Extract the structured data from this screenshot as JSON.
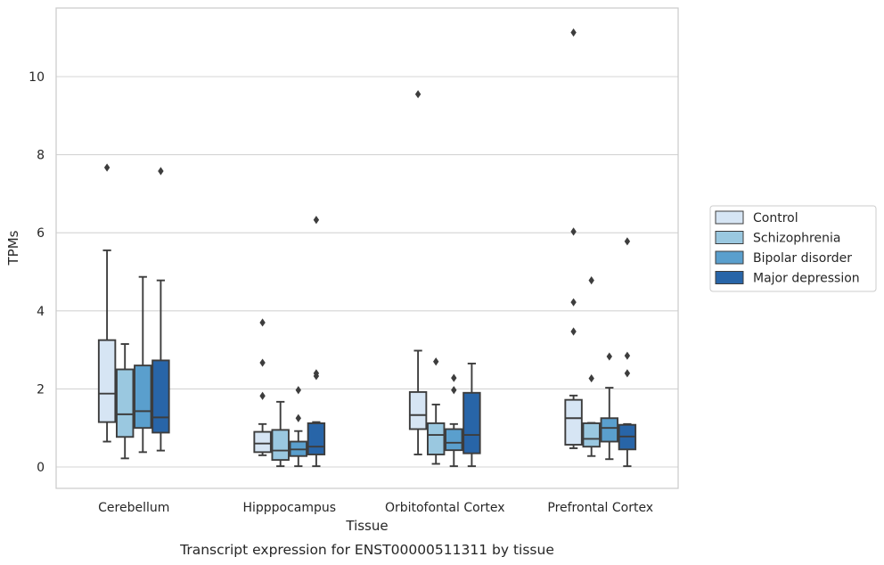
{
  "chart_data": {
    "type": "box",
    "title": "",
    "caption": "Transcript expression for ENST00000511311 by tissue",
    "xlabel": "Tissue",
    "ylabel": "TPMs",
    "ylim": [
      -0.55,
      11.75
    ],
    "yticks": [
      0,
      2,
      4,
      6,
      8,
      10
    ],
    "grid": "horizontal",
    "legend_position": "right",
    "categories": [
      "Cerebellum",
      "Hipppocampus",
      "Orbitofontal Cortex",
      "Prefrontal Cortex"
    ],
    "series": [
      {
        "name": "Control",
        "color": "#d6e5f4",
        "boxes": [
          {
            "whisker_low": 0.65,
            "q1": 1.15,
            "median": 1.88,
            "q3": 3.25,
            "whisker_high": 5.55,
            "outliers": [
              7.67
            ]
          },
          {
            "whisker_low": 0.3,
            "q1": 0.38,
            "median": 0.6,
            "q3": 0.9,
            "whisker_high": 1.1,
            "outliers": [
              1.82,
              2.67,
              3.7
            ]
          },
          {
            "whisker_low": 0.32,
            "q1": 0.97,
            "median": 1.33,
            "q3": 1.92,
            "whisker_high": 2.98,
            "outliers": [
              9.55
            ]
          },
          {
            "whisker_low": 0.48,
            "q1": 0.57,
            "median": 1.25,
            "q3": 1.72,
            "whisker_high": 1.83,
            "outliers": [
              3.47,
              4.22,
              6.03,
              11.13
            ]
          }
        ]
      },
      {
        "name": "Schizophrenia",
        "color": "#9ac8e0",
        "boxes": [
          {
            "whisker_low": 0.22,
            "q1": 0.77,
            "median": 1.35,
            "q3": 2.5,
            "whisker_high": 3.15,
            "outliers": []
          },
          {
            "whisker_low": 0.02,
            "q1": 0.18,
            "median": 0.42,
            "q3": 0.95,
            "whisker_high": 1.67,
            "outliers": []
          },
          {
            "whisker_low": 0.08,
            "q1": 0.32,
            "median": 0.82,
            "q3": 1.12,
            "whisker_high": 1.6,
            "outliers": [
              2.7
            ]
          },
          {
            "whisker_low": 0.28,
            "q1": 0.52,
            "median": 0.72,
            "q3": 1.12,
            "whisker_high": 1.13,
            "outliers": [
              2.27,
              4.78
            ]
          }
        ]
      },
      {
        "name": "Bipolar disorder",
        "color": "#5a9fcd",
        "boxes": [
          {
            "whisker_low": 0.38,
            "q1": 1.0,
            "median": 1.43,
            "q3": 2.6,
            "whisker_high": 4.87,
            "outliers": []
          },
          {
            "whisker_low": 0.02,
            "q1": 0.28,
            "median": 0.45,
            "q3": 0.65,
            "whisker_high": 0.92,
            "outliers": [
              1.25,
              1.97
            ]
          },
          {
            "whisker_low": 0.02,
            "q1": 0.43,
            "median": 0.62,
            "q3": 0.97,
            "whisker_high": 1.1,
            "outliers": [
              1.97,
              2.28
            ]
          },
          {
            "whisker_low": 0.2,
            "q1": 0.65,
            "median": 1.0,
            "q3": 1.25,
            "whisker_high": 2.03,
            "outliers": [
              2.83
            ]
          }
        ]
      },
      {
        "name": "Major depression",
        "color": "#2865a8",
        "boxes": [
          {
            "whisker_low": 0.42,
            "q1": 0.88,
            "median": 1.27,
            "q3": 2.73,
            "whisker_high": 4.78,
            "outliers": [
              7.58
            ]
          },
          {
            "whisker_low": 0.02,
            "q1": 0.32,
            "median": 0.52,
            "q3": 1.12,
            "whisker_high": 1.15,
            "outliers": [
              2.33,
              2.4,
              6.33
            ]
          },
          {
            "whisker_low": 0.02,
            "q1": 0.35,
            "median": 0.82,
            "q3": 1.9,
            "whisker_high": 2.65,
            "outliers": []
          },
          {
            "whisker_low": 0.02,
            "q1": 0.45,
            "median": 0.78,
            "q3": 1.08,
            "whisker_high": 1.1,
            "outliers": [
              2.4,
              2.85,
              5.78
            ]
          }
        ]
      }
    ]
  }
}
